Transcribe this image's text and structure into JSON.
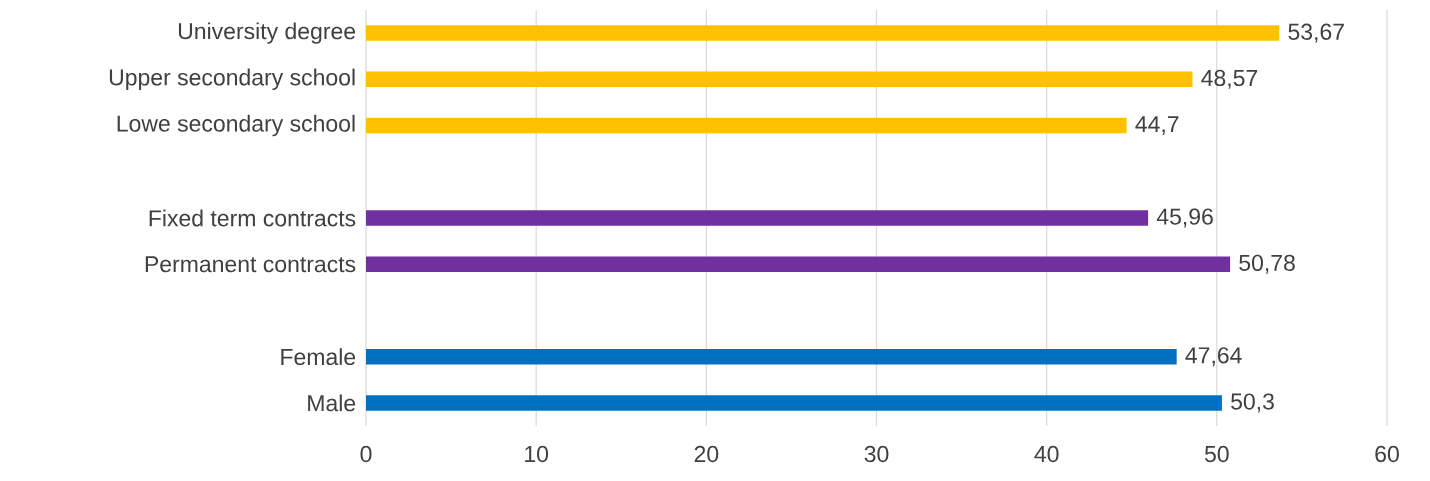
{
  "chart_data": {
    "type": "bar",
    "orientation": "horizontal",
    "categories": [
      "University degree",
      "Upper secondary school",
      "Lowe secondary school",
      null,
      "Fixed term contracts",
      "Permanent contracts",
      null,
      "Female",
      "Male"
    ],
    "values": [
      53.67,
      48.57,
      44.7,
      null,
      45.96,
      50.78,
      null,
      47.64,
      50.3
    ],
    "colors": [
      "#ffc000",
      "#ffc000",
      "#ffc000",
      null,
      "#7030a0",
      "#7030a0",
      null,
      "#0070c0",
      "#0070c0"
    ],
    "value_labels": [
      "53,67",
      "48,57",
      "44,7",
      null,
      "45,96",
      "50,78",
      null,
      "47,64",
      "50,3"
    ],
    "xlim": [
      0,
      60
    ],
    "xticks": [
      0,
      10,
      20,
      30,
      40,
      50,
      60
    ],
    "grid": "x"
  }
}
